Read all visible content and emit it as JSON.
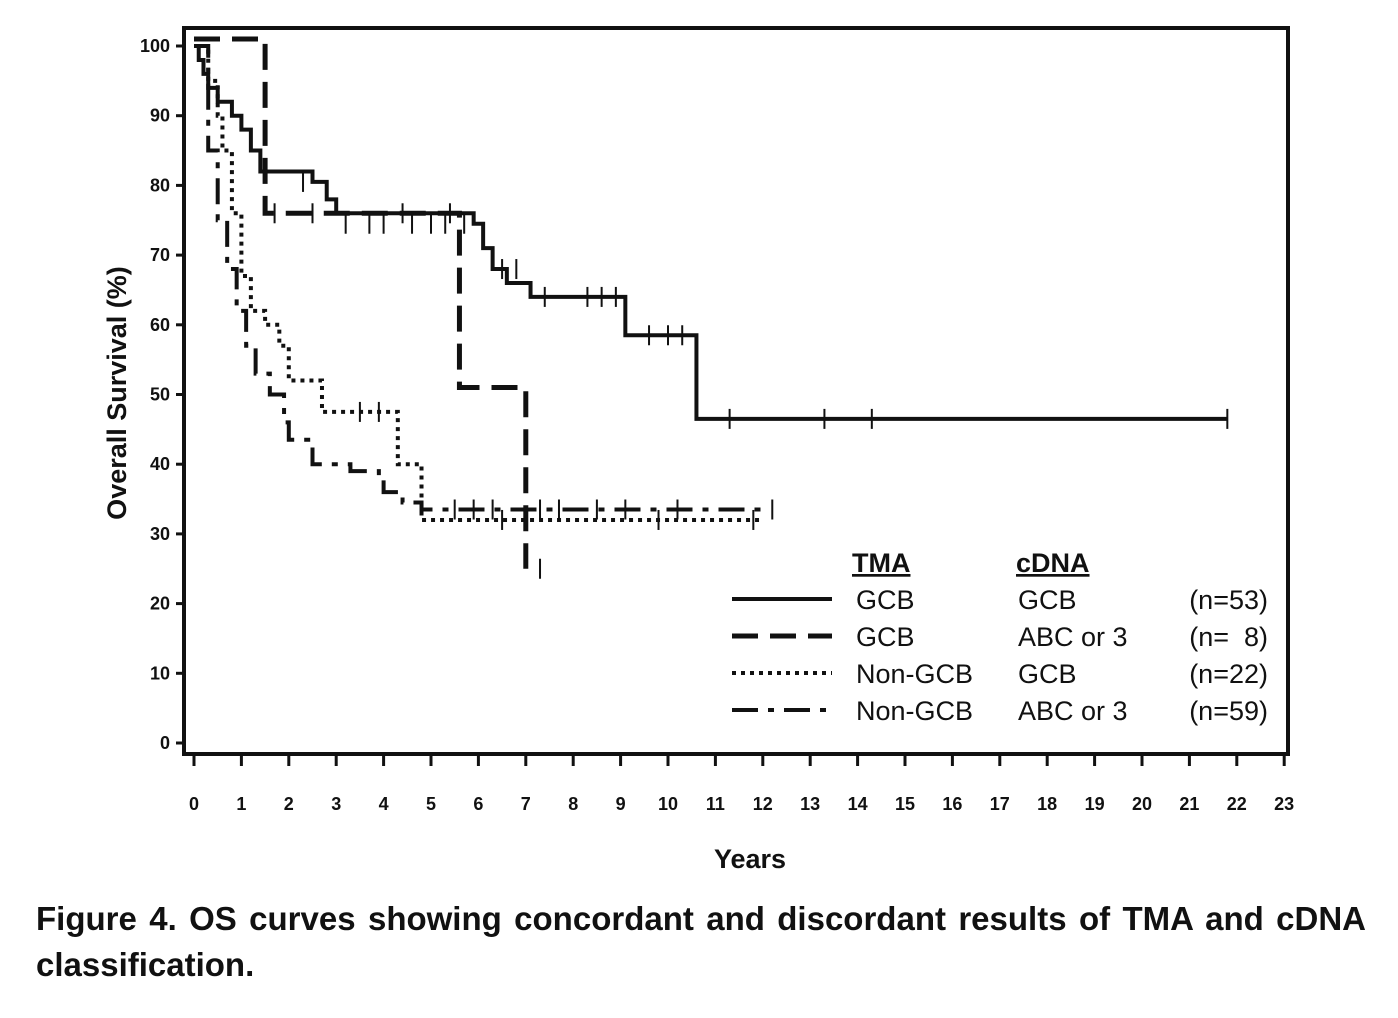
{
  "caption": "Figure 4. OS curves showing concordant and discordant results of TMA and cDNA classification.",
  "chart_data": {
    "type": "line",
    "subtype": "kaplan-meier",
    "title": "",
    "xlabel": "Years",
    "ylabel": "Overall Survival (%)",
    "xlim": [
      0,
      23
    ],
    "ylim": [
      0,
      100
    ],
    "xticks": [
      "0",
      "1",
      "2",
      "3",
      "4",
      "5",
      "6",
      "7",
      "8",
      "9",
      "10",
      "11",
      "12",
      "13",
      "14",
      "15",
      "16",
      "17",
      "18",
      "19",
      "20",
      "21",
      "22",
      "23"
    ],
    "yticks": [
      "0",
      "10",
      "20",
      "30",
      "40",
      "50",
      "60",
      "70",
      "80",
      "90",
      "100"
    ],
    "grid": false,
    "legend": {
      "placement": "bottom-right",
      "headers": [
        "TMA",
        "cDNA"
      ],
      "rows": [
        {
          "tma": "GCB",
          "cdna": "GCB",
          "n": "(n=53)",
          "style": "solid"
        },
        {
          "tma": "GCB",
          "cdna": "ABC or 3",
          "n": "(n=  8)",
          "style": "dashed"
        },
        {
          "tma": "Non-GCB",
          "cdna": "GCB",
          "n": "(n=22)",
          "style": "dotted"
        },
        {
          "tma": "Non-GCB",
          "cdna": "ABC or 3",
          "n": "(n=59)",
          "style": "dashdot"
        }
      ]
    },
    "series": [
      {
        "style": "solid",
        "x": [
          0,
          0.1,
          0.2,
          0.3,
          0.5,
          0.8,
          1.0,
          1.2,
          1.4,
          2.5,
          2.8,
          3.0,
          5.9,
          6.1,
          6.3,
          6.6,
          7.1,
          9.1,
          10.6,
          21.8
        ],
        "y": [
          100,
          98,
          96,
          94,
          92,
          90,
          88,
          85,
          82,
          80.5,
          78,
          76,
          74.5,
          71,
          68,
          66,
          64,
          58.5,
          46.5,
          46.5
        ],
        "censored": [
          {
            "x": 2.3,
            "y": 80.5
          },
          {
            "x": 3.2,
            "y": 74.5
          },
          {
            "x": 3.7,
            "y": 74.5
          },
          {
            "x": 4.0,
            "y": 74.5
          },
          {
            "x": 4.6,
            "y": 74.5
          },
          {
            "x": 5.0,
            "y": 74.5
          },
          {
            "x": 5.3,
            "y": 74.5
          },
          {
            "x": 5.7,
            "y": 74.5
          },
          {
            "x": 6.5,
            "y": 68
          },
          {
            "x": 6.8,
            "y": 68
          },
          {
            "x": 7.4,
            "y": 64
          },
          {
            "x": 8.3,
            "y": 64
          },
          {
            "x": 8.6,
            "y": 64
          },
          {
            "x": 8.9,
            "y": 64
          },
          {
            "x": 9.6,
            "y": 58.5
          },
          {
            "x": 10.0,
            "y": 58.5
          },
          {
            "x": 10.3,
            "y": 58.5
          },
          {
            "x": 11.3,
            "y": 46.5
          },
          {
            "x": 13.3,
            "y": 46.5
          },
          {
            "x": 14.3,
            "y": 46.5
          },
          {
            "x": 21.8,
            "y": 46.5
          }
        ]
      },
      {
        "style": "dashed",
        "x": [
          0,
          1.5,
          5.6,
          7.0,
          7.0
        ],
        "y": [
          101,
          76,
          51,
          25,
          25
        ],
        "censored": [
          {
            "x": 1.7,
            "y": 76
          },
          {
            "x": 2.5,
            "y": 76
          },
          {
            "x": 4.4,
            "y": 76
          },
          {
            "x": 5.4,
            "y": 76
          },
          {
            "x": 7.3,
            "y": 25
          }
        ]
      },
      {
        "style": "dotted",
        "x": [
          0,
          0.3,
          0.5,
          0.6,
          0.8,
          1.0,
          1.2,
          1.5,
          1.8,
          2.0,
          2.7,
          3.0,
          4.3,
          4.8,
          12.0
        ],
        "y": [
          100,
          95,
          90,
          85,
          76,
          67,
          62,
          60,
          57,
          52,
          47.5,
          47.5,
          40,
          32,
          32
        ],
        "censored": [
          {
            "x": 3.5,
            "y": 47.5
          },
          {
            "x": 3.9,
            "y": 47.5
          },
          {
            "x": 6.5,
            "y": 32
          },
          {
            "x": 7.0,
            "y": 32
          },
          {
            "x": 9.8,
            "y": 32
          },
          {
            "x": 11.8,
            "y": 32
          }
        ]
      },
      {
        "style": "dashdot",
        "x": [
          0,
          0.3,
          0.5,
          0.7,
          0.9,
          1.1,
          1.3,
          1.6,
          1.9,
          2.0,
          2.5,
          3.3,
          3.9,
          4.0,
          4.4,
          4.8,
          12.0
        ],
        "y": [
          100,
          85,
          75,
          68,
          62,
          57,
          53,
          50,
          46,
          43.5,
          40,
          39,
          38,
          36,
          34.5,
          33.5,
          33.5
        ],
        "censored": [
          {
            "x": 5.5,
            "y": 33.5
          },
          {
            "x": 5.9,
            "y": 33.5
          },
          {
            "x": 6.3,
            "y": 33.5
          },
          {
            "x": 7.3,
            "y": 33.5
          },
          {
            "x": 7.7,
            "y": 33.5
          },
          {
            "x": 8.5,
            "y": 33.5
          },
          {
            "x": 9.1,
            "y": 33.5
          },
          {
            "x": 10.2,
            "y": 33.5
          },
          {
            "x": 12.2,
            "y": 33.5
          }
        ]
      }
    ]
  }
}
